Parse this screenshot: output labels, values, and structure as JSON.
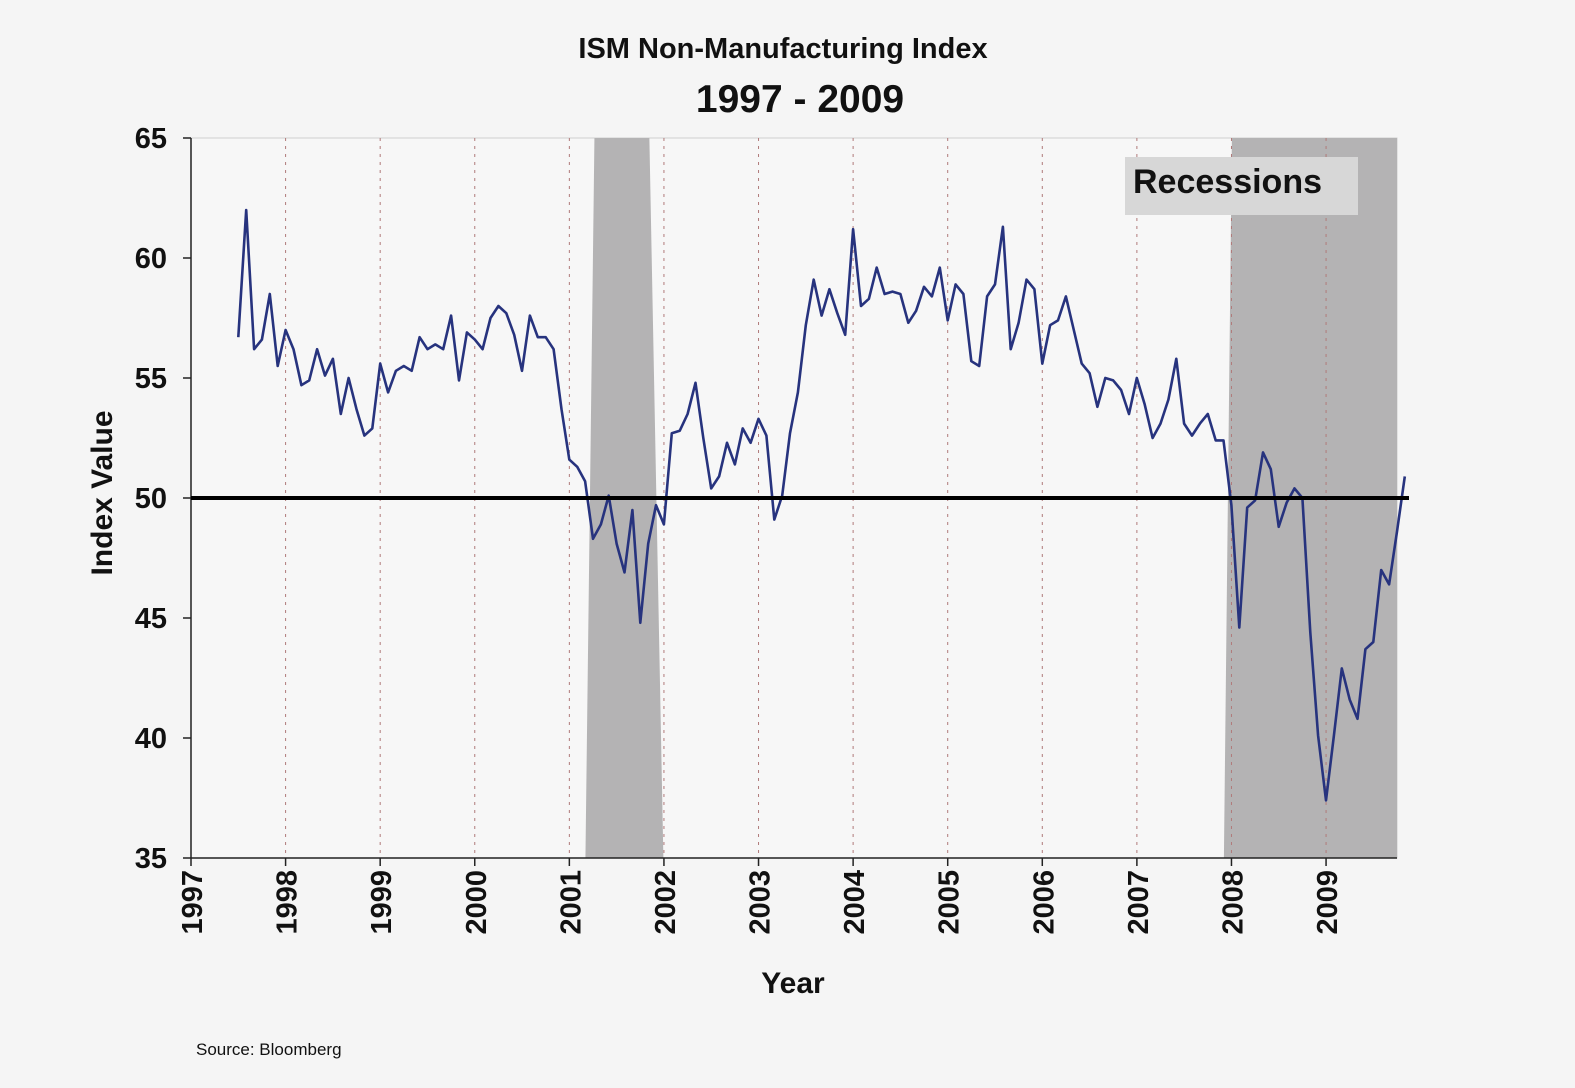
{
  "source": "Source: Bloomberg",
  "chart_data": {
    "type": "line",
    "title": "ISM Non-Manufacturing Index",
    "subtitle": "1997 - 2009",
    "xlabel": "Year",
    "ylabel": "Index  Value",
    "xlim": [
      1997,
      2009.75
    ],
    "ylim": [
      35,
      65
    ],
    "yticks": [
      "35",
      "40",
      "45",
      "50",
      "55",
      "60",
      "65"
    ],
    "xticks": [
      "1997",
      "1998",
      "1999",
      "2000",
      "2001",
      "2002",
      "2003",
      "2004",
      "2005",
      "2006",
      "2007",
      "2008",
      "2009"
    ],
    "reference_line": 50,
    "legend": "Recessions",
    "recessions": [
      [
        2001.17,
        2001.92
      ],
      [
        2007.92,
        2009.5
      ]
    ],
    "series": [
      {
        "name": "ISM Non-Manufacturing Index",
        "color": "#27337e",
        "start": 1997.5,
        "step": 0.08333,
        "values": [
          56.7,
          62.0,
          56.2,
          56.6,
          58.5,
          55.5,
          57.0,
          56.2,
          54.7,
          54.9,
          56.2,
          55.1,
          55.8,
          53.5,
          55.0,
          53.7,
          52.6,
          52.9,
          55.6,
          54.4,
          55.3,
          55.5,
          55.3,
          56.7,
          56.2,
          56.4,
          56.2,
          57.6,
          54.9,
          56.9,
          56.6,
          56.2,
          57.5,
          58.0,
          57.7,
          56.8,
          55.3,
          57.6,
          56.7,
          56.7,
          56.2,
          53.7,
          51.6,
          51.3,
          50.7,
          48.3,
          48.9,
          50.1,
          48.1,
          46.9,
          49.5,
          44.8,
          48.1,
          49.7,
          48.9,
          52.7,
          52.8,
          53.5,
          54.8,
          52.5,
          50.4,
          50.9,
          52.3,
          51.4,
          52.9,
          52.3,
          53.3,
          52.6,
          49.1,
          50.1,
          52.7,
          54.4,
          57.2,
          59.1,
          57.6,
          58.7,
          57.7,
          56.8,
          61.2,
          58.0,
          58.3,
          59.6,
          58.5,
          58.6,
          58.5,
          57.3,
          57.8,
          58.8,
          58.4,
          59.6,
          57.4,
          58.9,
          58.5,
          55.7,
          55.5,
          58.4,
          58.9,
          61.3,
          56.2,
          57.3,
          59.1,
          58.7,
          55.6,
          57.2,
          57.4,
          58.4,
          57.0,
          55.6,
          55.2,
          53.8,
          55.0,
          54.9,
          54.5,
          53.5,
          55.0,
          53.9,
          52.5,
          53.1,
          54.1,
          55.8,
          53.1,
          52.6,
          53.1,
          53.5,
          52.4,
          52.4,
          49.7,
          44.6,
          49.6,
          49.9,
          51.9,
          51.2,
          48.8,
          49.8,
          50.4,
          50.0,
          44.4,
          40.1,
          37.4,
          40.1,
          42.9,
          41.6,
          40.8,
          43.7,
          44.0,
          47.0,
          46.4,
          48.6,
          50.9
        ]
      }
    ]
  }
}
